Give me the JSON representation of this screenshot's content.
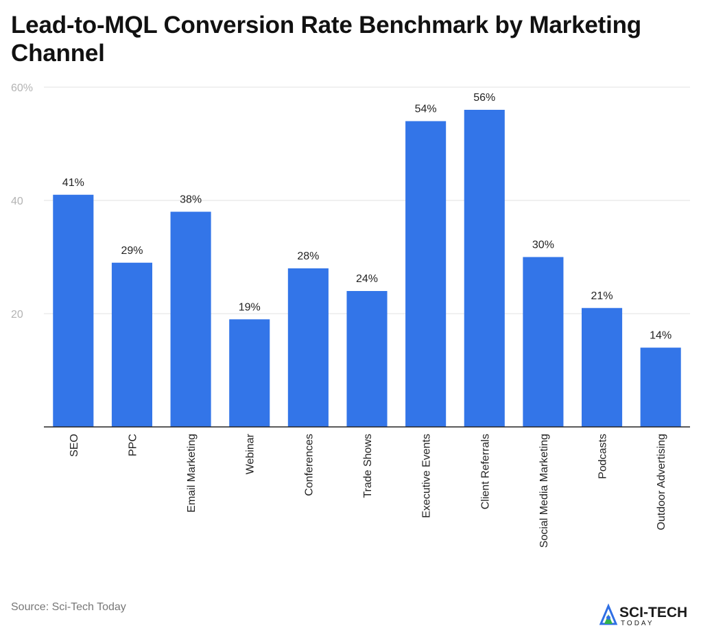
{
  "chart_data": {
    "type": "bar",
    "title": "Lead-to-MQL Conversion Rate Benchmark by Marketing Channel",
    "categories": [
      "SEO",
      "PPC",
      "Email Marketing",
      "Webinar",
      "Conferences",
      "Trade Shows",
      "Executive Events",
      "Client Referrals",
      "Social Media Marketing",
      "Podcasts",
      "Outdoor Advertising"
    ],
    "values": [
      41,
      29,
      38,
      19,
      28,
      24,
      54,
      56,
      30,
      21,
      14
    ],
    "value_labels": [
      "41%",
      "29%",
      "38%",
      "19%",
      "28%",
      "24%",
      "54%",
      "56%",
      "30%",
      "21%",
      "14%"
    ],
    "ylim": [
      0,
      60
    ],
    "yticks": [
      20,
      40,
      60
    ],
    "ytick_labels": [
      "20",
      "40",
      "60%"
    ],
    "grid": true,
    "bar_color": "#3375e8",
    "xlabel": "",
    "ylabel": ""
  },
  "footer": {
    "source": "Source: Sci-Tech Today"
  },
  "logo": {
    "name": "SCI-TECH",
    "sub": "TODAY",
    "icon": "atom-triangle-icon",
    "colors": [
      "#2f6fe4",
      "#34b34a"
    ]
  }
}
